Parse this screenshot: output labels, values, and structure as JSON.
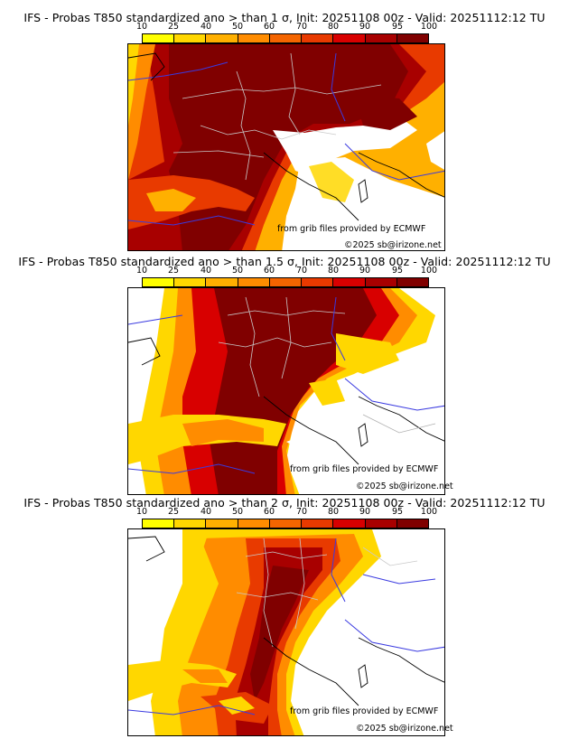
{
  "colorbar": {
    "ticks": [
      "10",
      "25",
      "40",
      "50",
      "60",
      "70",
      "80",
      "90",
      "95",
      "100"
    ],
    "colors": [
      "#ffff00",
      "#ffd700",
      "#ffb000",
      "#ff8c00",
      "#f46500",
      "#e83a00",
      "#d80000",
      "#a80000",
      "#800000"
    ]
  },
  "panels": [
    {
      "title": "IFS - Probas T850  standardized ano > than 1 σ, Init: 20251108 00z - Valid: 20251112:12 TU",
      "credit_source": "from grib files provided by ECMWF",
      "credit_copyright": "©2025 sb@irizone.net"
    },
    {
      "title": "IFS - Probas T850  standardized ano > than 1.5 σ, Init: 20251108 00z - Valid: 20251112:12 TU",
      "credit_source": "from grib files provided by ECMWF",
      "credit_copyright": "©2025 sb@irizone.net"
    },
    {
      "title": "IFS - Probas T850  standardized ano > than 2 σ, Init: 20251108 00z - Valid: 20251112:12 TU",
      "credit_source": "from grib files provided by ECMWF",
      "credit_copyright": "©2025 sb@irizone.net"
    }
  ]
}
